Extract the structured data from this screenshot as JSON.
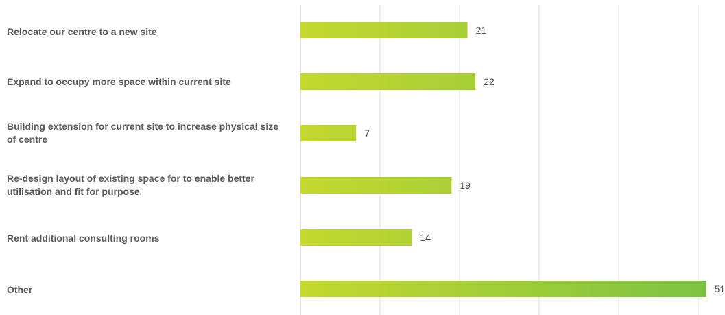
{
  "chart_data": {
    "type": "bar",
    "orientation": "horizontal",
    "categories": [
      "Relocate our centre to a new site",
      "Expand to occupy more space within current site",
      "Building extension for current site to increase physical size of centre",
      "Re-design layout of existing space for to enable better utilisation and fit for purpose",
      "Rent additional consulting rooms",
      "Other"
    ],
    "values": [
      21,
      22,
      7,
      19,
      14,
      51
    ],
    "value_labels": [
      "21",
      "22",
      "7",
      "19",
      "14",
      "51"
    ],
    "xlim": [
      0,
      51
    ],
    "grid": true,
    "colors": {
      "bar_start": "#c4d82e",
      "bar_end": "#7cc242",
      "gridline": "#e2e2e2",
      "axis": "#c8c8c8",
      "label_text": "#5a5a5a",
      "value_text": "#555555"
    }
  }
}
